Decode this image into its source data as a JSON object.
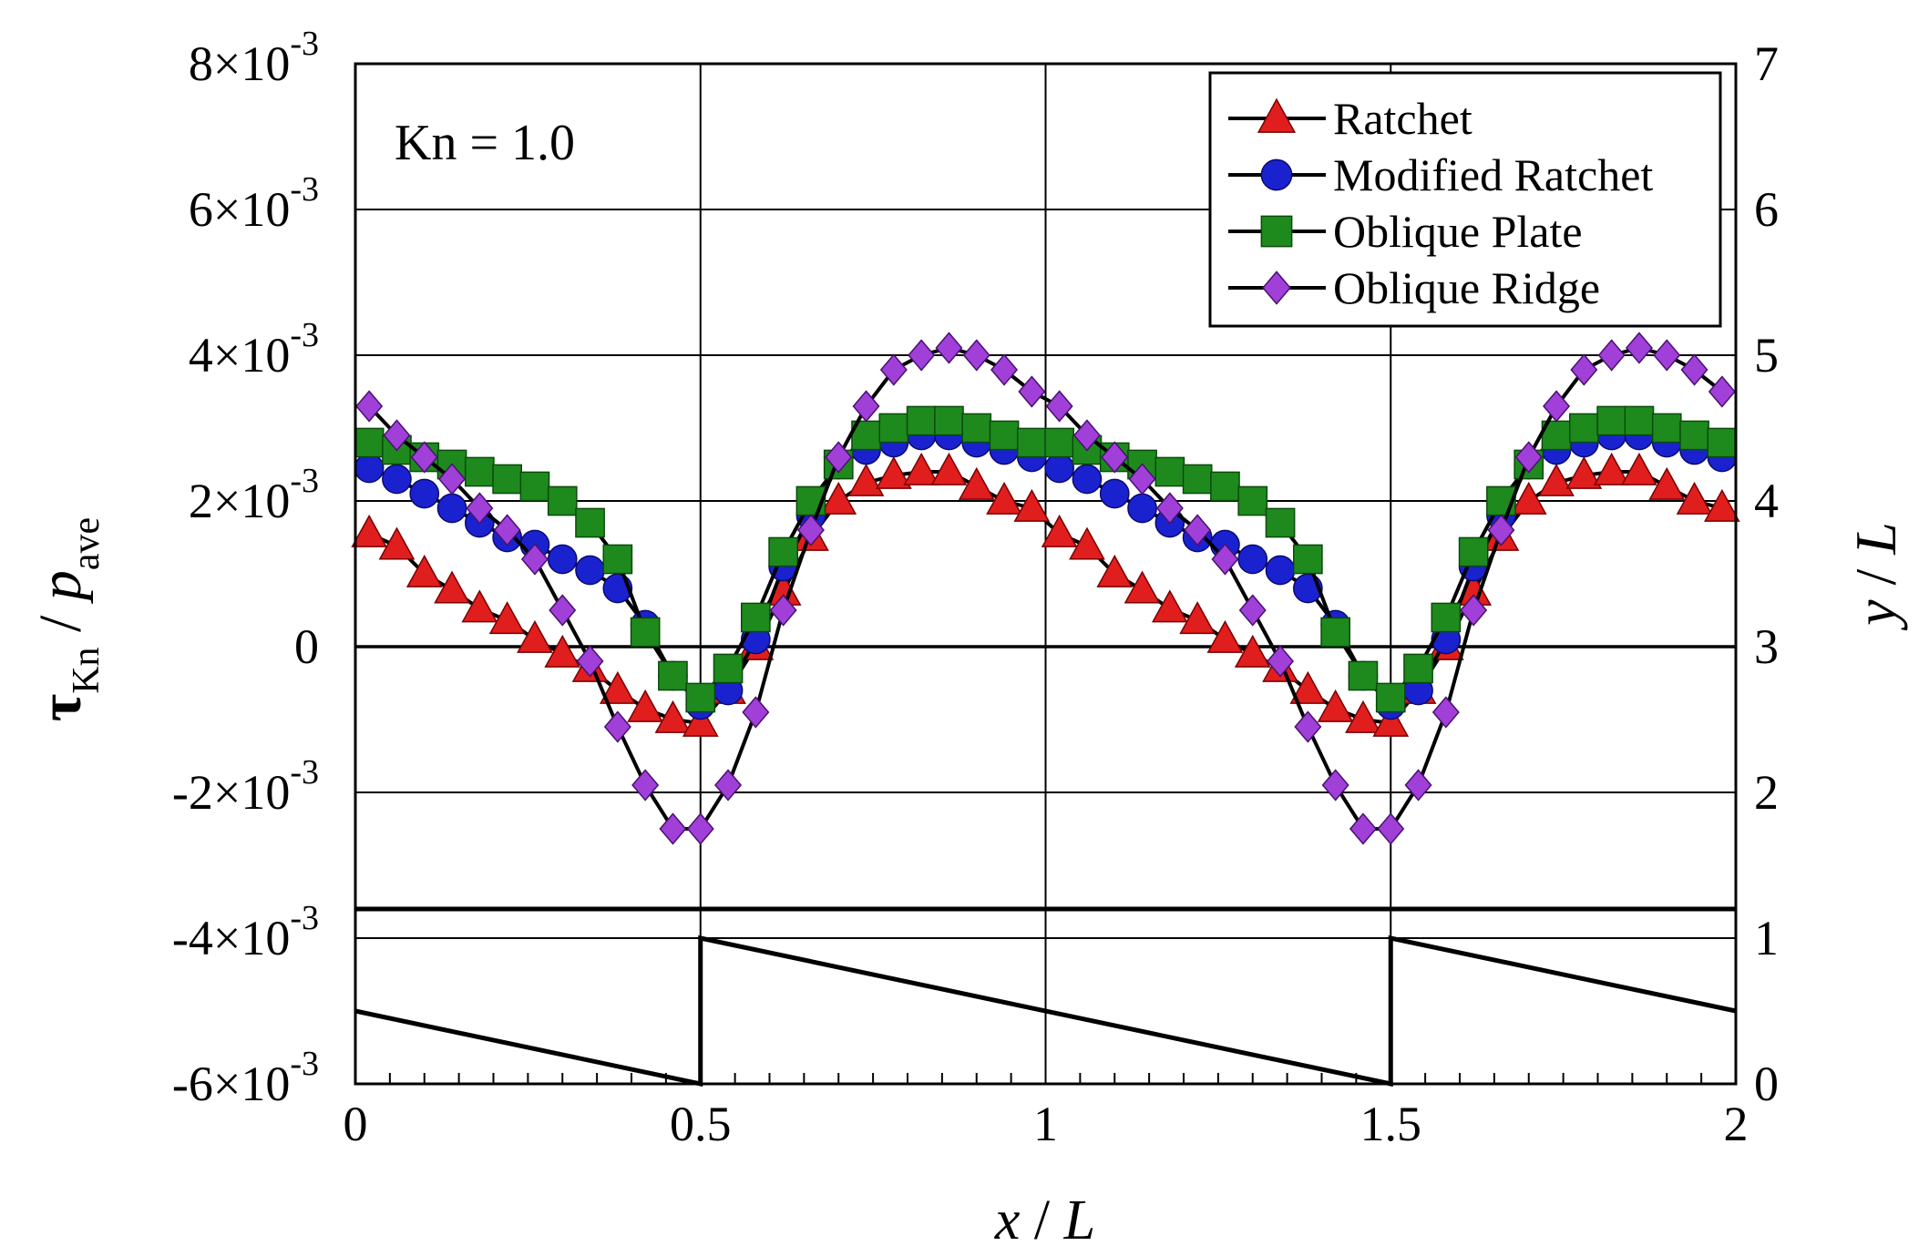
{
  "chart_data": {
    "type": "line",
    "annotation": "Kn = 1.0",
    "xlabel": "x / L",
    "ylabel_left": "τKn / pave",
    "ylabel_right": "y / L",
    "xlim": [
      0,
      2
    ],
    "ylim_left": [
      -0.006,
      0.008
    ],
    "ylim_right": [
      0,
      7
    ],
    "xticks": [
      {
        "v": 0,
        "label": "0"
      },
      {
        "v": 0.5,
        "label": "0.5"
      },
      {
        "v": 1,
        "label": "1"
      },
      {
        "v": 1.5,
        "label": "1.5"
      },
      {
        "v": 2,
        "label": "2"
      }
    ],
    "yticks_left": [
      {
        "v": 0.008,
        "mant": "8×10",
        "exp": "-3"
      },
      {
        "v": 0.006,
        "mant": "6×10",
        "exp": "-3"
      },
      {
        "v": 0.004,
        "mant": "4×10",
        "exp": "-3"
      },
      {
        "v": 0.002,
        "mant": "2×10",
        "exp": "-3"
      },
      {
        "v": 0,
        "mant": "0",
        "exp": ""
      },
      {
        "v": -0.002,
        "mant": "-2×10",
        "exp": "-3"
      },
      {
        "v": -0.004,
        "mant": "-4×10",
        "exp": "-3"
      },
      {
        "v": -0.006,
        "mant": "-6×10",
        "exp": "-3"
      }
    ],
    "yticks_right": [
      {
        "v": 7,
        "label": "7"
      },
      {
        "v": 6,
        "label": "6"
      },
      {
        "v": 5,
        "label": "5"
      },
      {
        "v": 4,
        "label": "4"
      },
      {
        "v": 3,
        "label": "3"
      },
      {
        "v": 2,
        "label": "2"
      },
      {
        "v": 1,
        "label": "1"
      },
      {
        "v": 0,
        "label": "0"
      }
    ],
    "x": [
      0.02,
      0.06,
      0.1,
      0.14,
      0.18,
      0.22,
      0.26,
      0.3,
      0.34,
      0.38,
      0.42,
      0.46,
      0.5,
      0.54,
      0.58,
      0.62,
      0.66,
      0.7,
      0.74,
      0.78,
      0.82,
      0.86,
      0.9,
      0.94,
      0.98,
      1.02,
      1.06,
      1.1,
      1.14,
      1.18,
      1.22,
      1.26,
      1.3,
      1.34,
      1.38,
      1.42,
      1.46,
      1.5,
      1.54,
      1.58,
      1.62,
      1.66,
      1.7,
      1.74,
      1.78,
      1.82,
      1.86,
      1.9,
      1.94,
      1.98
    ],
    "series": [
      {
        "name": "Ratchet",
        "color": "#e01e1e",
        "marker": "triangle",
        "values": [
          0.00155,
          0.00138,
          0.001,
          0.00078,
          0.00052,
          0.00036,
          0.0001,
          -0.0001,
          -0.0003,
          -0.0006,
          -0.00085,
          -0.001,
          -0.00105,
          -0.0006,
          0.0,
          0.00075,
          0.0015,
          0.002,
          0.00225,
          0.00235,
          0.0024,
          0.0024,
          0.0022,
          0.002,
          0.0019,
          0.00155,
          0.00138,
          0.001,
          0.00078,
          0.00052,
          0.00036,
          0.0001,
          -0.0001,
          -0.0003,
          -0.0006,
          -0.00085,
          -0.001,
          -0.00105,
          -0.0006,
          0.0,
          0.00075,
          0.0015,
          0.002,
          0.00225,
          0.00235,
          0.0024,
          0.0024,
          0.0022,
          0.002,
          0.0019
        ]
      },
      {
        "name": "Modified Ratchet",
        "color": "#1a22d0",
        "marker": "circle",
        "values": [
          0.00245,
          0.0023,
          0.0021,
          0.0019,
          0.0017,
          0.0015,
          0.0014,
          0.0012,
          0.00105,
          0.0008,
          0.0003,
          -0.0004,
          -0.0008,
          -0.0006,
          0.0001,
          0.0011,
          0.0018,
          0.0025,
          0.0027,
          0.0028,
          0.0029,
          0.0029,
          0.0028,
          0.0027,
          0.0026,
          0.00245,
          0.0023,
          0.0021,
          0.0019,
          0.0017,
          0.0015,
          0.0014,
          0.0012,
          0.00105,
          0.0008,
          0.0003,
          -0.0004,
          -0.0008,
          -0.0006,
          0.0001,
          0.0011,
          0.0018,
          0.0025,
          0.0027,
          0.0028,
          0.0029,
          0.0029,
          0.0028,
          0.0027,
          0.0026
        ]
      },
      {
        "name": "Oblique Plate",
        "color": "#1e8a1e",
        "marker": "square",
        "values": [
          0.0028,
          0.0027,
          0.0026,
          0.0025,
          0.0024,
          0.0023,
          0.0022,
          0.002,
          0.0017,
          0.0012,
          0.0002,
          -0.0004,
          -0.0007,
          -0.0003,
          0.0004,
          0.0013,
          0.002,
          0.0025,
          0.0029,
          0.003,
          0.0031,
          0.0031,
          0.003,
          0.0029,
          0.0028,
          0.0028,
          0.0027,
          0.0026,
          0.0025,
          0.0024,
          0.0023,
          0.0022,
          0.002,
          0.0017,
          0.0012,
          0.0002,
          -0.0004,
          -0.0007,
          -0.0003,
          0.0004,
          0.0013,
          0.002,
          0.0025,
          0.0029,
          0.003,
          0.0031,
          0.0031,
          0.003,
          0.0029,
          0.0028
        ]
      },
      {
        "name": "Oblique Ridge",
        "color": "#a040d8",
        "marker": "diamond",
        "values": [
          0.0033,
          0.0029,
          0.0026,
          0.0023,
          0.0019,
          0.0016,
          0.0012,
          0.0005,
          -0.0002,
          -0.0011,
          -0.0019,
          -0.0025,
          -0.0025,
          -0.0019,
          -0.0009,
          0.0005,
          0.0016,
          0.0026,
          0.0033,
          0.0038,
          0.004,
          0.0041,
          0.004,
          0.0038,
          0.0035,
          0.0033,
          0.0029,
          0.0026,
          0.0023,
          0.0019,
          0.0016,
          0.0012,
          0.0005,
          -0.0002,
          -0.0011,
          -0.0019,
          -0.0025,
          -0.0025,
          -0.0019,
          -0.0009,
          0.0005,
          0.0016,
          0.0026,
          0.0033,
          0.0038,
          0.004,
          0.0041,
          0.004,
          0.0038,
          0.0035
        ]
      }
    ],
    "wall_series": {
      "name": "wall profile (right axis)",
      "x": [
        0,
        0.5,
        0.5,
        1.5,
        1.5,
        2
      ],
      "y": [
        0.5,
        0,
        1,
        0,
        1,
        0.5
      ],
      "upper_y": 1.2
    },
    "legend": {
      "position": "top-right",
      "entries": [
        "Ratchet",
        "Modified Ratchet",
        "Oblique Plate",
        "Oblique Ridge"
      ]
    }
  }
}
